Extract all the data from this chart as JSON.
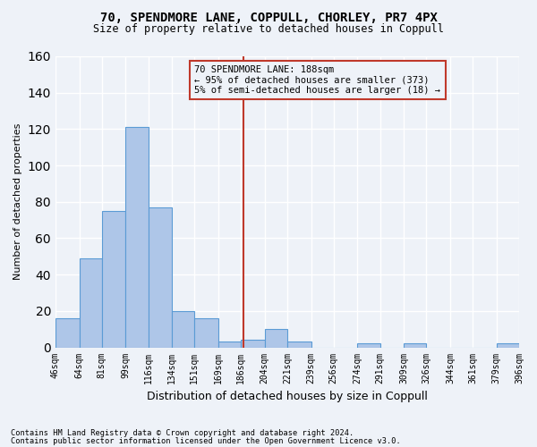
{
  "title1": "70, SPENDMORE LANE, COPPULL, CHORLEY, PR7 4PX",
  "title2": "Size of property relative to detached houses in Coppull",
  "xlabel": "Distribution of detached houses by size in Coppull",
  "ylabel": "Number of detached properties",
  "bin_labels": [
    "46sqm",
    "64sqm",
    "81sqm",
    "99sqm",
    "116sqm",
    "134sqm",
    "151sqm",
    "169sqm",
    "186sqm",
    "204sqm",
    "221sqm",
    "239sqm",
    "256sqm",
    "274sqm",
    "291sqm",
    "309sqm",
    "326sqm",
    "344sqm",
    "361sqm",
    "379sqm",
    "396sqm"
  ],
  "bin_edges": [
    46,
    64,
    81,
    99,
    116,
    134,
    151,
    169,
    186,
    204,
    221,
    239,
    256,
    274,
    291,
    309,
    326,
    344,
    361,
    379,
    396
  ],
  "bar_heights": [
    16,
    49,
    75,
    121,
    77,
    20,
    16,
    3,
    4,
    10,
    3,
    0,
    0,
    2,
    0,
    2,
    0,
    0,
    0,
    2
  ],
  "bar_color": "#aec6e8",
  "bar_edge_color": "#5b9bd5",
  "property_size": 188,
  "vline_color": "#c0392b",
  "ylim": [
    0,
    160
  ],
  "yticks": [
    0,
    20,
    40,
    60,
    80,
    100,
    120,
    140,
    160
  ],
  "legend_text_line1": "70 SPENDMORE LANE: 188sqm",
  "legend_text_line2": "← 95% of detached houses are smaller (373)",
  "legend_text_line3": "5% of semi-detached houses are larger (18) →",
  "legend_box_color": "#c0392b",
  "footer_line1": "Contains HM Land Registry data © Crown copyright and database right 2024.",
  "footer_line2": "Contains public sector information licensed under the Open Government Licence v3.0.",
  "bg_color": "#eef2f8",
  "grid_color": "#ffffff"
}
